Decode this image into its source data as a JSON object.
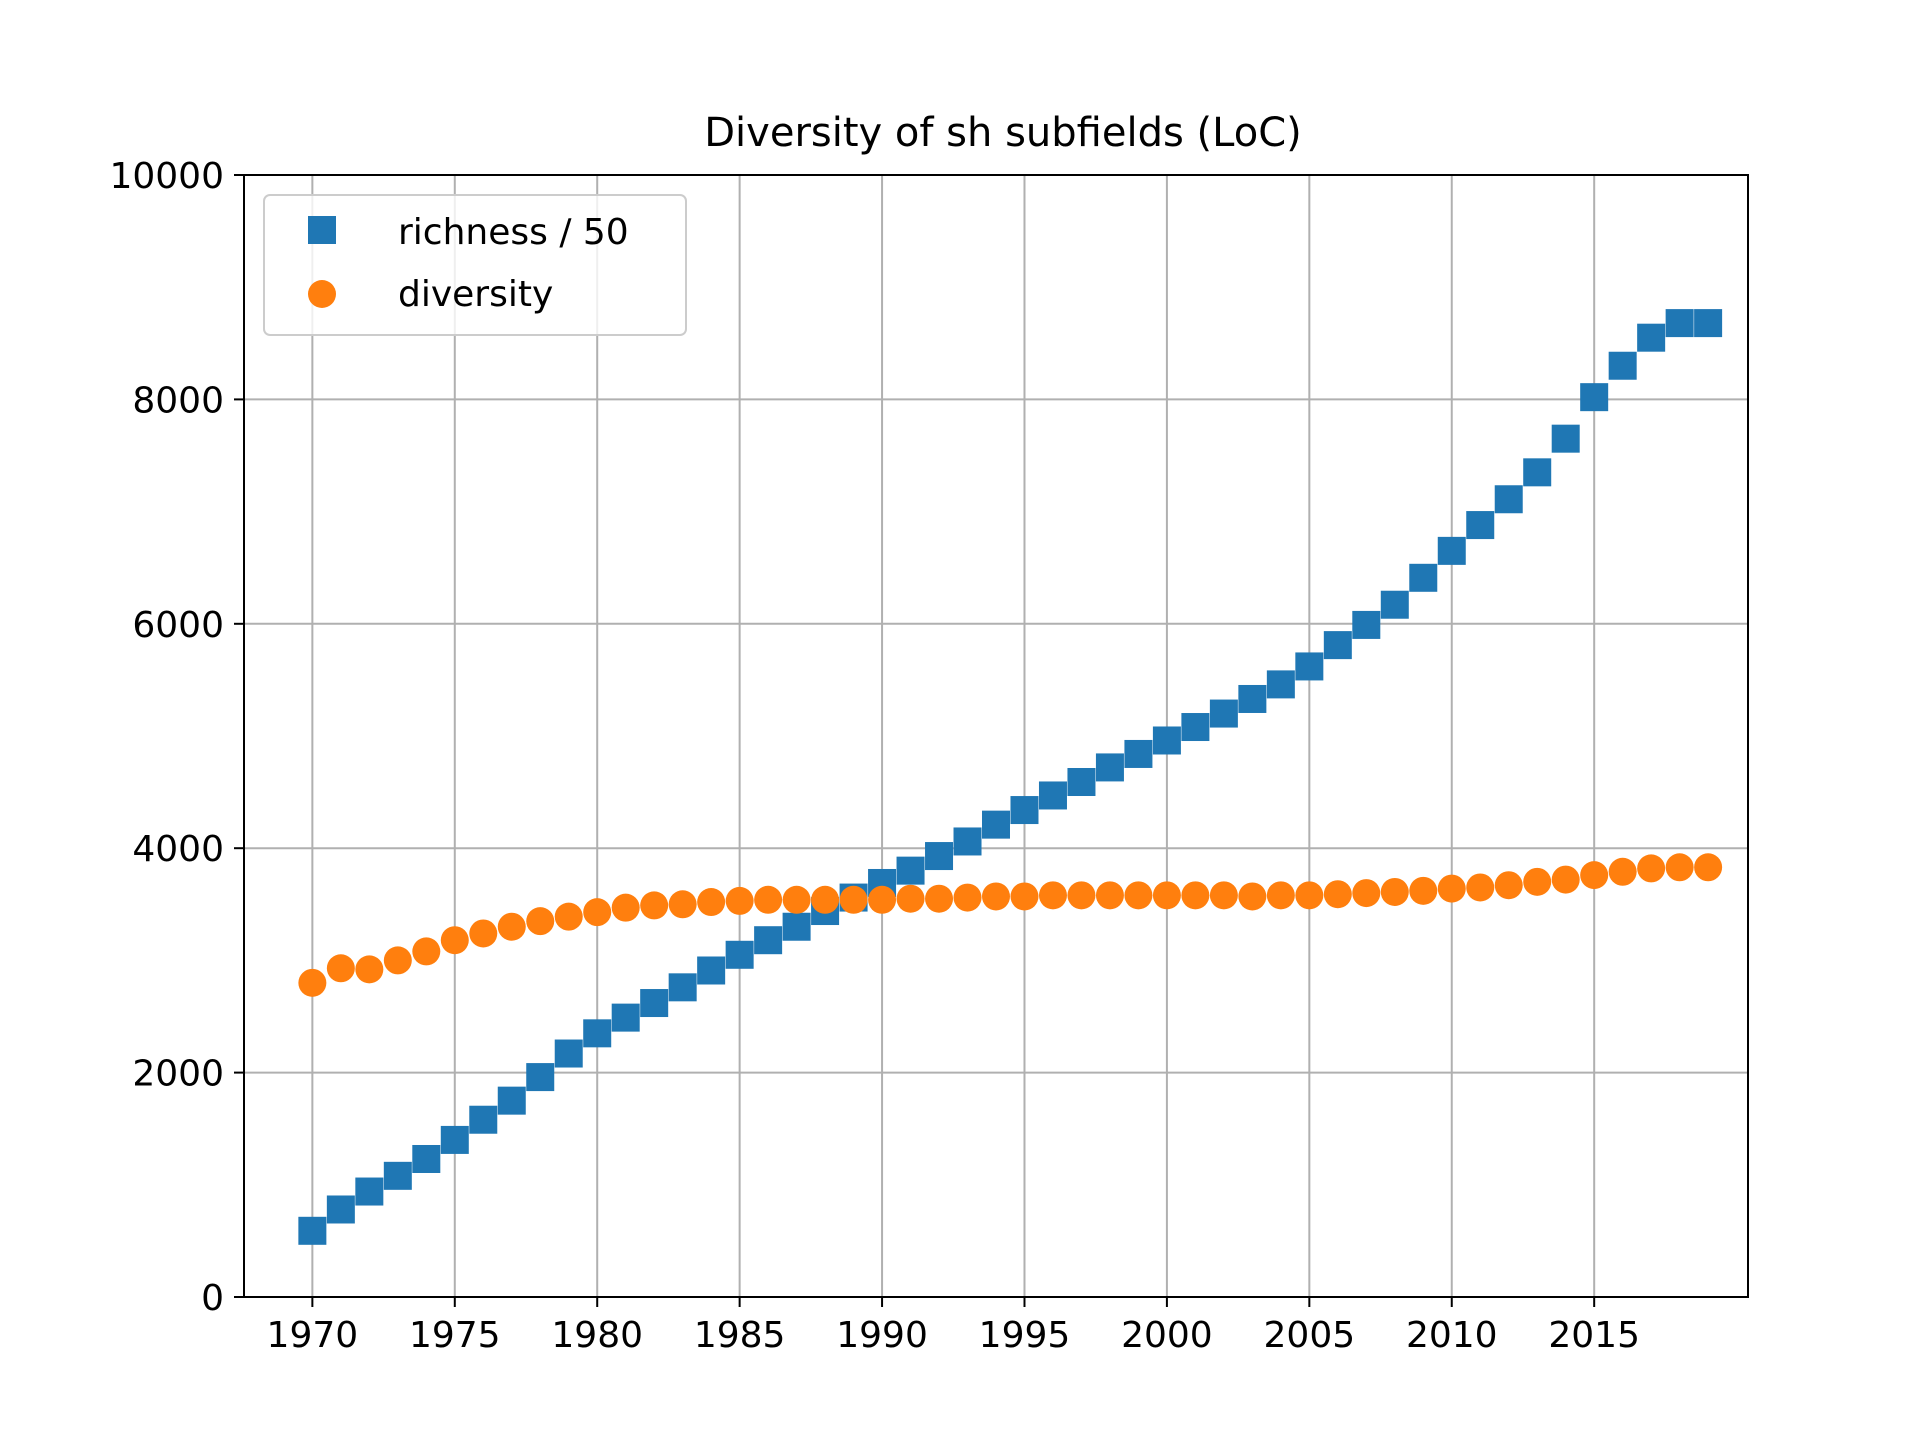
{
  "chart_data": {
    "type": "scatter",
    "title": "Diversity of sh subfields (LoC)",
    "xlabel": "",
    "ylabel": "",
    "xlim": [
      1967.6,
      2020.4
    ],
    "ylim": [
      0,
      10000
    ],
    "xticks": [
      1970,
      1975,
      1980,
      1985,
      1990,
      1995,
      2000,
      2005,
      2010,
      2015
    ],
    "xtick_labels": [
      "1970",
      "1975",
      "1980",
      "1985",
      "1990",
      "1995",
      "2000",
      "2005",
      "2010",
      "2015"
    ],
    "yticks": [
      0,
      2000,
      4000,
      6000,
      8000,
      10000
    ],
    "ytick_labels": [
      "0",
      "2000",
      "4000",
      "6000",
      "8000",
      "10000"
    ],
    "grid": true,
    "legend_position": "top-left",
    "x": [
      1970,
      1971,
      1972,
      1973,
      1974,
      1975,
      1976,
      1977,
      1978,
      1979,
      1980,
      1981,
      1982,
      1983,
      1984,
      1985,
      1986,
      1987,
      1988,
      1989,
      1990,
      1991,
      1992,
      1993,
      1994,
      1995,
      1996,
      1997,
      1998,
      1999,
      2000,
      2001,
      2002,
      2003,
      2004,
      2005,
      2006,
      2007,
      2008,
      2009,
      2010,
      2011,
      2012,
      2013,
      2014,
      2015,
      2016,
      2017,
      2018,
      2019
    ],
    "series": [
      {
        "name": "richness / 50",
        "marker": "square",
        "color": "#1f77b4",
        "values": [
          590,
          780,
          940,
          1080,
          1230,
          1400,
          1580,
          1750,
          1960,
          2170,
          2350,
          2490,
          2620,
          2760,
          2910,
          3050,
          3180,
          3300,
          3440,
          3560,
          3690,
          3800,
          3930,
          4060,
          4210,
          4340,
          4470,
          4590,
          4720,
          4840,
          4960,
          5080,
          5200,
          5330,
          5460,
          5620,
          5810,
          5990,
          6170,
          6410,
          6650,
          6880,
          7110,
          7350,
          7650,
          8020,
          8300,
          8550,
          8680,
          8680
        ]
      },
      {
        "name": "diversity",
        "marker": "circle",
        "color": "#ff7f0e",
        "values": [
          2800,
          2930,
          2920,
          3000,
          3080,
          3180,
          3240,
          3300,
          3350,
          3390,
          3430,
          3470,
          3490,
          3500,
          3520,
          3530,
          3540,
          3540,
          3540,
          3540,
          3540,
          3550,
          3550,
          3560,
          3570,
          3570,
          3580,
          3580,
          3580,
          3580,
          3580,
          3580,
          3580,
          3570,
          3580,
          3580,
          3590,
          3600,
          3610,
          3620,
          3640,
          3650,
          3670,
          3700,
          3720,
          3760,
          3790,
          3820,
          3830,
          3830
        ]
      }
    ]
  }
}
